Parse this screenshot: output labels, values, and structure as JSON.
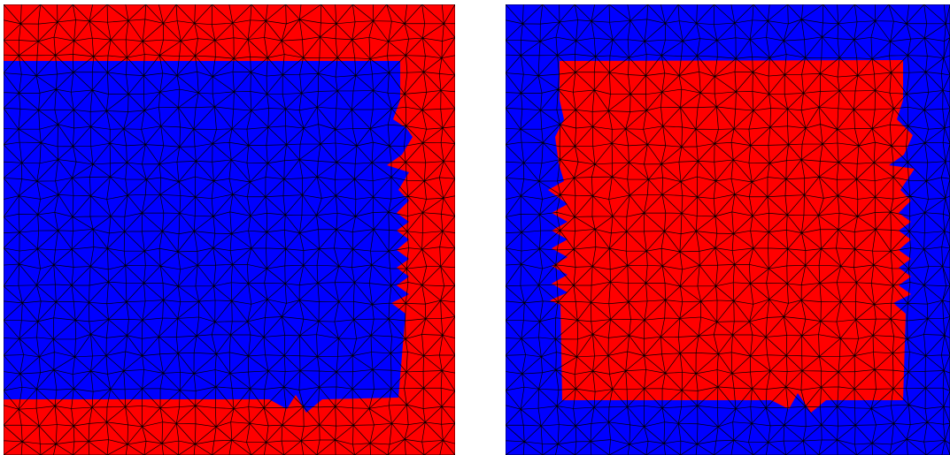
{
  "panels": [
    {
      "id": "left",
      "outer_color": "#ff0000",
      "inner_color": "#0000ff"
    },
    {
      "id": "right",
      "outer_color": "#0000ff",
      "inner_color": "#ff0000"
    }
  ],
  "mesh": {
    "line_color": "#000000",
    "triangulated": true
  }
}
